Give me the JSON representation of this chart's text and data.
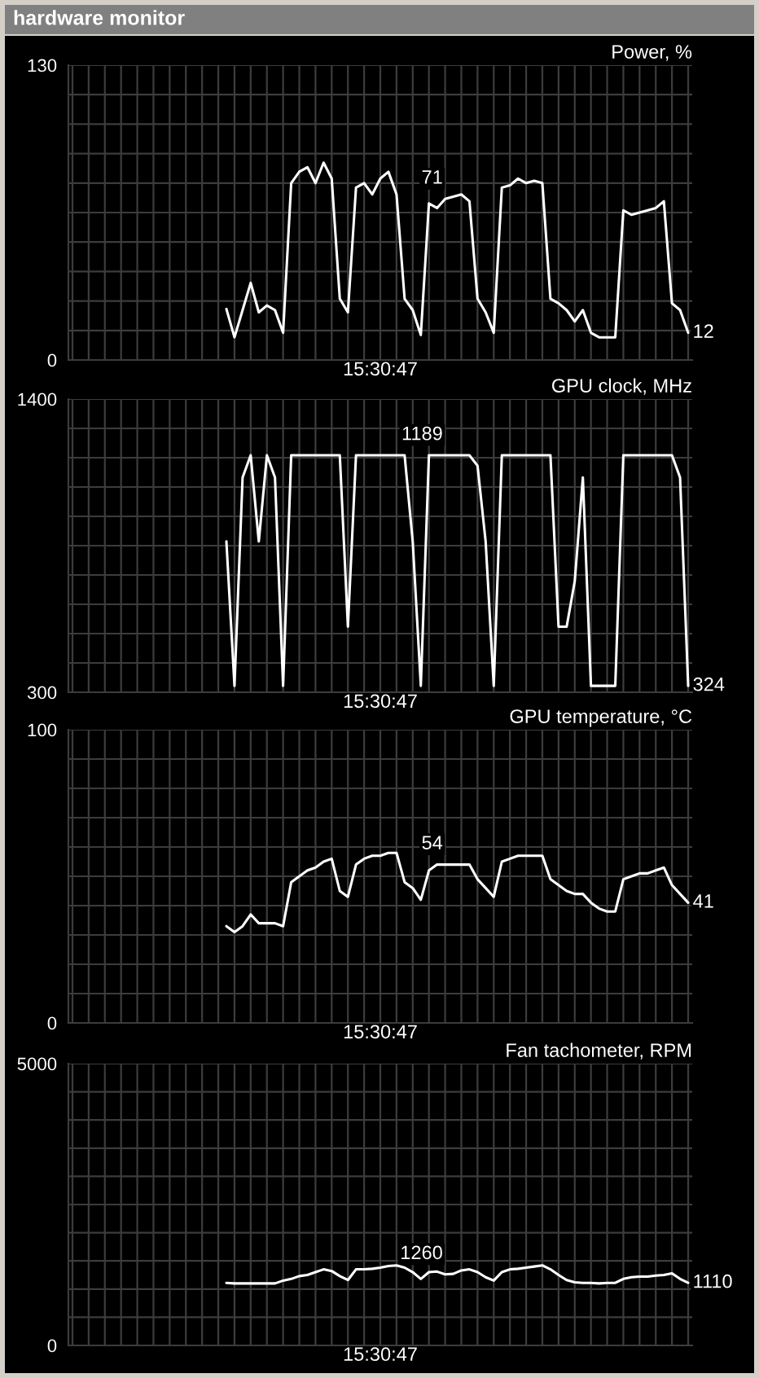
{
  "chart_data": [
    {
      "type": "line",
      "title": "Power, %",
      "annotations": [
        "hardware monitor",
        "15:30:47"
      ],
      "categories": [
        null,
        null,
        null,
        null,
        null,
        null,
        null,
        null,
        null,
        null,
        null,
        null,
        null,
        null,
        null,
        null,
        null,
        null,
        null,
        null,
        null,
        null,
        null,
        null,
        null,
        null,
        null,
        null,
        null,
        null,
        null,
        null,
        null,
        null,
        null,
        null,
        null,
        null,
        null,
        null,
        null,
        null,
        null,
        null,
        null,
        null,
        null,
        null,
        null,
        null,
        null,
        null,
        null,
        null,
        null,
        null,
        null,
        null,
        null,
        null,
        null,
        null,
        null,
        null,
        null,
        null,
        null,
        null,
        null,
        null,
        null,
        null,
        null,
        null,
        null,
        null,
        null
      ],
      "series": [
        {
          "color": "#ffffff",
          "values": [
            null,
            null,
            null,
            null,
            null,
            null,
            null,
            null,
            null,
            null,
            null,
            null,
            null,
            null,
            null,
            null,
            null,
            null,
            null,
            22.5,
            10,
            22,
            34,
            21,
            24,
            22,
            12,
            78,
            83,
            85,
            78,
            87,
            80,
            27,
            21,
            76,
            78,
            73,
            80,
            83,
            73,
            27,
            22,
            11,
            69,
            67,
            71,
            72,
            73,
            70,
            27,
            21,
            12,
            76,
            77,
            80,
            78,
            79,
            78,
            27,
            25,
            22,
            17,
            22,
            12,
            10,
            10,
            10,
            66,
            64,
            65,
            66,
            67,
            70,
            25,
            22,
            12
          ],
          "value_labels": [
            null,
            null,
            null,
            null,
            null,
            null,
            null,
            null,
            null,
            null,
            null,
            null,
            null,
            null,
            null,
            null,
            null,
            null,
            null,
            null,
            null,
            null,
            null,
            null,
            null,
            null,
            null,
            null,
            null,
            null,
            null,
            null,
            null,
            null,
            null,
            null,
            null,
            null,
            null,
            null,
            null,
            null,
            null,
            null,
            null,
            null,
            "71",
            null,
            null,
            null,
            null,
            null,
            null,
            null,
            null,
            null,
            null,
            null,
            null,
            null,
            null,
            null,
            null,
            null,
            null,
            null,
            null,
            null,
            null,
            null,
            null,
            null,
            null,
            null,
            null,
            null,
            "12"
          ]
        }
      ],
      "ylim": [
        0,
        130
      ],
      "yticks": [
        0,
        {
          "value": 13,
          "label": null
        },
        {
          "value": 26,
          "label": null
        },
        {
          "value": 39,
          "label": null
        },
        {
          "value": 52,
          "label": null
        },
        {
          "value": 65,
          "label": null
        },
        {
          "value": 78,
          "label": null
        },
        {
          "value": 91,
          "label": null
        },
        {
          "value": 104,
          "label": null
        },
        {
          "value": 117,
          "label": null
        },
        130
      ],
      "grid": true,
      "tick_labels": "y"
    },
    {
      "type": "line",
      "title": "GPU clock, MHz",
      "annotations": [
        "15:30:47"
      ],
      "categories": [
        null,
        null,
        null,
        null,
        null,
        null,
        null,
        null,
        null,
        null,
        null,
        null,
        null,
        null,
        null,
        null,
        null,
        null,
        null,
        null,
        null,
        null,
        null,
        null,
        null,
        null,
        null,
        null,
        null,
        null,
        null,
        null,
        null,
        null,
        null,
        null,
        null,
        null,
        null,
        null,
        null,
        null,
        null,
        null,
        null,
        null,
        null,
        null,
        null,
        null,
        null,
        null,
        null,
        null,
        null,
        null,
        null,
        null,
        null,
        null,
        null,
        null,
        null,
        null,
        null,
        null,
        null,
        null,
        null,
        null,
        null,
        null,
        null,
        null,
        null,
        null,
        null
      ],
      "series": [
        {
          "color": "#ffffff",
          "values": [
            null,
            null,
            null,
            null,
            null,
            null,
            null,
            null,
            null,
            null,
            null,
            null,
            null,
            null,
            null,
            null,
            null,
            null,
            null,
            866,
            324,
            1106,
            1189,
            866,
            1189,
            1106,
            324,
            1189,
            1189,
            1189,
            1189,
            1189,
            1189,
            1189,
            546,
            1189,
            1189,
            1189,
            1189,
            1189,
            1189,
            1189,
            866,
            324,
            1189,
            1189,
            1189,
            1189,
            1189,
            1189,
            1150,
            866,
            324,
            1189,
            1189,
            1189,
            1189,
            1189,
            1189,
            1189,
            546,
            546,
            716,
            1106,
            324,
            324,
            324,
            324,
            1189,
            1189,
            1189,
            1189,
            1189,
            1189,
            1189,
            1106,
            324
          ],
          "value_labels": [
            null,
            null,
            null,
            null,
            null,
            null,
            null,
            null,
            null,
            null,
            null,
            null,
            null,
            null,
            null,
            null,
            null,
            null,
            null,
            null,
            null,
            null,
            null,
            null,
            null,
            null,
            null,
            null,
            null,
            null,
            null,
            null,
            null,
            null,
            null,
            null,
            null,
            null,
            null,
            null,
            null,
            null,
            null,
            null,
            null,
            null,
            "1189",
            null,
            null,
            null,
            null,
            null,
            null,
            null,
            null,
            null,
            null,
            null,
            null,
            null,
            null,
            null,
            null,
            null,
            null,
            null,
            null,
            null,
            null,
            null,
            null,
            null,
            null,
            null,
            null,
            null,
            "324"
          ]
        }
      ],
      "ylim": [
        300,
        1400
      ],
      "yticks": [
        300,
        {
          "value": 410,
          "label": null
        },
        {
          "value": 520,
          "label": null
        },
        {
          "value": 630,
          "label": null
        },
        {
          "value": 740,
          "label": null
        },
        {
          "value": 850,
          "label": null
        },
        {
          "value": 960,
          "label": null
        },
        {
          "value": 1070,
          "label": null
        },
        {
          "value": 1180,
          "label": null
        },
        {
          "value": 1290,
          "label": null
        },
        1400
      ],
      "grid": true,
      "tick_labels": "y"
    },
    {
      "type": "line",
      "title": "GPU temperature, °C",
      "annotations": [
        "15:30:47"
      ],
      "categories": [
        null,
        null,
        null,
        null,
        null,
        null,
        null,
        null,
        null,
        null,
        null,
        null,
        null,
        null,
        null,
        null,
        null,
        null,
        null,
        null,
        null,
        null,
        null,
        null,
        null,
        null,
        null,
        null,
        null,
        null,
        null,
        null,
        null,
        null,
        null,
        null,
        null,
        null,
        null,
        null,
        null,
        null,
        null,
        null,
        null,
        null,
        null,
        null,
        null,
        null,
        null,
        null,
        null,
        null,
        null,
        null,
        null,
        null,
        null,
        null,
        null,
        null,
        null,
        null,
        null,
        null,
        null,
        null,
        null,
        null,
        null,
        null,
        null,
        null,
        null,
        null,
        null
      ],
      "series": [
        {
          "color": "#ffffff",
          "values": [
            null,
            null,
            null,
            null,
            null,
            null,
            null,
            null,
            null,
            null,
            null,
            null,
            null,
            null,
            null,
            null,
            null,
            null,
            null,
            33,
            31,
            33,
            37,
            34,
            34,
            34,
            33,
            48,
            50,
            52,
            53,
            55,
            56,
            45,
            43,
            54,
            56,
            57,
            57,
            58,
            58,
            48,
            46,
            42,
            52,
            54,
            54,
            54,
            54,
            54,
            49,
            46,
            43,
            55,
            56,
            57,
            57,
            57,
            57,
            49,
            47,
            45,
            44,
            44,
            41,
            39,
            38,
            38,
            49,
            50,
            51,
            51,
            52,
            53,
            47,
            44,
            41
          ],
          "value_labels": [
            null,
            null,
            null,
            null,
            null,
            null,
            null,
            null,
            null,
            null,
            null,
            null,
            null,
            null,
            null,
            null,
            null,
            null,
            null,
            null,
            null,
            null,
            null,
            null,
            null,
            null,
            null,
            null,
            null,
            null,
            null,
            null,
            null,
            null,
            null,
            null,
            null,
            null,
            null,
            null,
            null,
            null,
            null,
            null,
            null,
            null,
            "54",
            null,
            null,
            null,
            null,
            null,
            null,
            null,
            null,
            null,
            null,
            null,
            null,
            null,
            null,
            null,
            null,
            null,
            null,
            null,
            null,
            null,
            null,
            null,
            null,
            null,
            null,
            null,
            null,
            null,
            "41"
          ]
        }
      ],
      "ylim": [
        0,
        100
      ],
      "yticks": [
        0,
        {
          "value": 10,
          "label": null
        },
        {
          "value": 20,
          "label": null
        },
        {
          "value": 30,
          "label": null
        },
        {
          "value": 40,
          "label": null
        },
        {
          "value": 50,
          "label": null
        },
        {
          "value": 60,
          "label": null
        },
        {
          "value": 70,
          "label": null
        },
        {
          "value": 80,
          "label": null
        },
        {
          "value": 90,
          "label": null
        },
        100
      ],
      "grid": true,
      "tick_labels": "y"
    },
    {
      "type": "line",
      "title": "Fan tachometer, RPM",
      "annotations": [
        "15:30:47"
      ],
      "categories": [
        null,
        null,
        null,
        null,
        null,
        null,
        null,
        null,
        null,
        null,
        null,
        null,
        null,
        null,
        null,
        null,
        null,
        null,
        null,
        null,
        null,
        null,
        null,
        null,
        null,
        null,
        null,
        null,
        null,
        null,
        null,
        null,
        null,
        null,
        null,
        null,
        null,
        null,
        null,
        null,
        null,
        null,
        null,
        null,
        null,
        null,
        null,
        null,
        null,
        null,
        null,
        null,
        null,
        null,
        null,
        null,
        null,
        null,
        null,
        null,
        null,
        null,
        null,
        null,
        null,
        null,
        null,
        null,
        null,
        null,
        null,
        null,
        null,
        null,
        null,
        null,
        null
      ],
      "series": [
        {
          "color": "#ffffff",
          "values": [
            null,
            null,
            null,
            null,
            null,
            null,
            null,
            null,
            null,
            null,
            null,
            null,
            null,
            null,
            null,
            null,
            null,
            null,
            null,
            1110,
            1100,
            1100,
            1100,
            1100,
            1100,
            1100,
            1150,
            1180,
            1230,
            1250,
            1300,
            1350,
            1320,
            1230,
            1160,
            1350,
            1350,
            1360,
            1380,
            1410,
            1420,
            1380,
            1300,
            1180,
            1300,
            1310,
            1260,
            1270,
            1330,
            1350,
            1300,
            1210,
            1150,
            1300,
            1350,
            1360,
            1380,
            1400,
            1420,
            1350,
            1250,
            1160,
            1120,
            1110,
            1110,
            1100,
            1110,
            1110,
            1180,
            1210,
            1220,
            1220,
            1240,
            1250,
            1280,
            1180,
            1110
          ],
          "value_labels": [
            null,
            null,
            null,
            null,
            null,
            null,
            null,
            null,
            null,
            null,
            null,
            null,
            null,
            null,
            null,
            null,
            null,
            null,
            null,
            null,
            null,
            null,
            null,
            null,
            null,
            null,
            null,
            null,
            null,
            null,
            null,
            null,
            null,
            null,
            null,
            null,
            null,
            null,
            null,
            null,
            null,
            null,
            null,
            null,
            null,
            null,
            "1260",
            null,
            null,
            null,
            null,
            null,
            null,
            null,
            null,
            null,
            null,
            null,
            null,
            null,
            null,
            null,
            null,
            null,
            null,
            null,
            null,
            null,
            null,
            null,
            null,
            null,
            null,
            null,
            null,
            null,
            "1110"
          ]
        }
      ],
      "ylim": [
        0,
        5000
      ],
      "yticks": [
        0,
        {
          "value": 500,
          "label": null
        },
        {
          "value": 1000,
          "label": null
        },
        {
          "value": 1500,
          "label": null
        },
        {
          "value": 2000,
          "label": null
        },
        {
          "value": 2500,
          "label": null
        },
        {
          "value": 3000,
          "label": null
        },
        {
          "value": 3500,
          "label": null
        },
        {
          "value": 4000,
          "label": null
        },
        {
          "value": 4500,
          "label": null
        },
        5000
      ],
      "grid": true,
      "tick_labels": "y"
    }
  ]
}
